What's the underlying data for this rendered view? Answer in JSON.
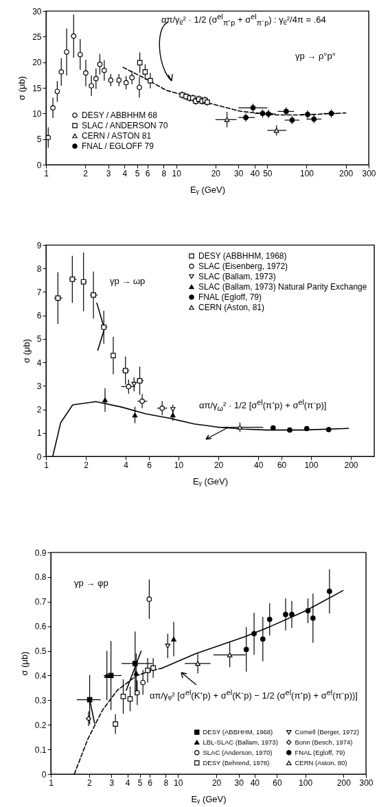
{
  "chart_data": [
    {
      "type": "scatter",
      "xlabel": "Eᵧ (GeV)",
      "ylabel": "σ (μb)",
      "log": "x",
      "legend": "bottom left",
      "xlim": [
        1,
        300
      ],
      "xticks": [
        1,
        2,
        3,
        4,
        5,
        6,
        8,
        10,
        20,
        30,
        40,
        50,
        100,
        200,
        300
      ],
      "ylim": [
        0,
        30
      ],
      "yticks": [
        0,
        5,
        10,
        15,
        20,
        25,
        30
      ],
      "annotations": [
        "απ/γᵨ² · 1/2 (σ$^{el}$$_{π⁺p}$ + σ$^{el}$$_{π⁻p}$) : γᵨ²/4π = .64",
        "γp → ρ°p°"
      ],
      "series": [
        {
          "name": "DESY / ABBHHM 68",
          "marker": "circle",
          "color": "#ffffff",
          "x": [
            1.04,
            1.13,
            1.22,
            1.31,
            1.44,
            1.63,
            1.83,
            2.02,
            2.23,
            2.42,
            2.59,
            2.8,
            3.14,
            3.63,
            4.12,
            4.57,
            5.21
          ],
          "values": [
            5.3,
            11.1,
            14.3,
            18.1,
            22.0,
            25.1,
            21.5,
            17.9,
            15.4,
            16.8,
            19.6,
            18.4,
            16.5,
            16.5,
            16.0,
            17.0,
            15.1
          ],
          "errors": [
            2,
            2,
            2,
            2.7,
            4.6,
            4.2,
            3,
            2.6,
            2,
            2,
            2,
            2,
            1.2,
            1.2,
            1.3,
            1.3,
            2
          ]
        },
        {
          "name": "SLAC / ANDERSON 70",
          "marker": "square",
          "color": "#ffffff",
          "x": [
            5.25,
            5.77,
            6.32,
            11.1,
            11.9,
            12.7,
            13.4,
            14.1,
            14.9,
            15.8,
            16.6,
            17.3
          ],
          "values": [
            19.9,
            18.1,
            16.4,
            13.6,
            13.3,
            13.0,
            13.0,
            12.4,
            12.8,
            12.4,
            12.6,
            12.2
          ],
          "errors": [
            2,
            1.5,
            1.5,
            0.7,
            0.7,
            0.7,
            0.7,
            0.7,
            0.7,
            0.7,
            0.7,
            0.7
          ]
        },
        {
          "name": "CERN / ASTON 81",
          "marker": "triangle",
          "color": "#ffffff",
          "x": [
            24.5,
            58.8
          ],
          "values": [
            8.8,
            6.7
          ],
          "errors": [
            1.5,
            1
          ],
          "xerrors": [
            [
              20,
              29
            ],
            [
              50,
              70
            ]
          ]
        },
        {
          "name": "FNAL / EGLOFF 79",
          "marker": "circle",
          "color": "#000000",
          "x": [
            34.2,
            38.8,
            46,
            51,
            69.8,
            77.5,
            102,
            114,
            155
          ],
          "values": [
            9.2,
            11.1,
            10.0,
            9.9,
            10.4,
            8.7,
            9.8,
            8.9,
            10.0
          ],
          "errors": [
            0.8,
            0.8,
            0.8,
            0.8,
            0.8,
            0.8,
            0.8,
            0.8,
            0.8
          ],
          "xerrors": [
            [
              30,
              40
            ],
            [
              30,
              50
            ],
            [
              40,
              55
            ],
            [
              45,
              58
            ],
            [
              60,
              80
            ],
            [
              68,
              88
            ],
            [
              90,
              115
            ],
            [
              100,
              130
            ],
            [
              135,
              175
            ]
          ]
        },
        {
          "type": "line",
          "line_style": "dashed",
          "color": "#000000",
          "x": [
            3.9,
            5.7,
            8.4,
            11.8,
            17.3,
            31.4,
            59,
            91,
            200
          ],
          "values": [
            19.0,
            16.9,
            14.5,
            13.5,
            12.1,
            10.4,
            9.7,
            9.7,
            10.1
          ]
        }
      ]
    },
    {
      "type": "scatter",
      "xlabel": "Eᵧ (GeV)",
      "ylabel": "σ (μb)",
      "log": "x",
      "legend": "top right",
      "xlim": [
        1,
        300
      ],
      "xticks": [
        1,
        2,
        4,
        6,
        10,
        20,
        40,
        60,
        100,
        200
      ],
      "ylim": [
        0,
        9
      ],
      "yticks": [
        0,
        1,
        2,
        3,
        4,
        5,
        6,
        7,
        8,
        9
      ],
      "annotations": [
        "γp → ωp",
        "απ/γ$_{ω}$² · 1/2 [σ$^{el}$(π⁺p) + σ$^{el}$(π⁻p)]"
      ],
      "series": [
        {
          "name": "DESY (ABBHHM, 1968)",
          "marker": "square",
          "color": "#ffffff",
          "x": [
            1.23,
            1.58,
            1.92,
            2.28,
            2.73,
            3.22,
            3.98,
            5.1
          ],
          "values": [
            6.74,
            7.54,
            7.43,
            6.87,
            5.5,
            4.29,
            3.65,
            3.22
          ],
          "errors": [
            1.1,
            1.0,
            1.25,
            1.0,
            0.7,
            0.8,
            0.6,
            0.6
          ],
          "xerrors": [
            [
              1.15,
              1.33
            ],
            [
              1.5,
              1.7
            ],
            [
              1.83,
              2.03
            ],
            [
              2.15,
              2.45
            ],
            [
              2.6,
              2.9
            ],
            [
              3.1,
              3.35
            ],
            [
              3.75,
              4.25
            ],
            [
              4.85,
              5.45
            ]
          ]
        },
        {
          "name": "SLAC (Eisenberg, 1972)",
          "marker": "circle",
          "color": "#ffffff",
          "x": [
            4.2,
            5.32,
            7.53
          ],
          "values": [
            2.97,
            2.35,
            2.05
          ],
          "errors": [
            0.3,
            0.3,
            0.3
          ],
          "xerrors": [
            [
              3.7,
              4.7
            ],
            [
              4.9,
              5.8
            ],
            [
              6.9,
              8.2
            ]
          ]
        },
        {
          "name": "SLAC (Ballam, 1973)",
          "marker": "triangle-down",
          "color": "#ffffff",
          "x": [
            4.62,
            9.07
          ],
          "values": [
            3.07,
            2.0
          ],
          "errors": [
            0.3,
            0.2
          ]
        },
        {
          "name": "SLAC (Ballam, 1973) Natural Parity Exchange",
          "marker": "triangle",
          "color": "#000000",
          "x": [
            2.79,
            4.69,
            9.07
          ],
          "values": [
            2.4,
            1.76,
            1.76
          ],
          "errors": [
            0.5,
            0.35,
            0.25
          ]
        },
        {
          "name": "FNAL (Egloff, 79)",
          "marker": "circle",
          "color": "#000000",
          "x": [
            51.8,
            69.1,
            92.9,
            136
          ],
          "values": [
            1.21,
            1.12,
            1.18,
            1.14
          ],
          "errors": [
            0.1,
            0.1,
            0.1,
            0.1
          ]
        },
        {
          "name": "CERN (Aston, 81)",
          "marker": "triangle",
          "color": "#ffffff",
          "x": [
            29.1
          ],
          "values": [
            1.24
          ],
          "errors": [
            0.2
          ],
          "xerrors": [
            [
              19.5,
              43.6
            ]
          ]
        },
        {
          "type": "line",
          "line_style": "solid",
          "color": "#000000",
          "x": [
            1.125,
            1.29,
            1.59,
            2.38,
            3.7,
            5.65,
            8.6,
            13.1,
            20.1,
            30.6,
            46.8,
            88.1,
            192
          ],
          "values": [
            0,
            1.43,
            2.19,
            2.33,
            2.1,
            1.81,
            1.62,
            1.38,
            1.24,
            1.16,
            1.12,
            1.12,
            1.19
          ]
        },
        {
          "type": "line",
          "line_style": "solid",
          "color": "#000000",
          "x": [
            2.42,
            2.76,
            2.46
          ],
          "values": [
            6.52,
            5.43,
            4.52
          ]
        }
      ]
    },
    {
      "type": "scatter",
      "xlabel": "Eᵧ (GeV)",
      "ylabel": "σ (μb)",
      "log": "x",
      "legend": "bottom right",
      "xlim": [
        1,
        300
      ],
      "xticks": [
        1,
        2,
        3,
        4,
        5,
        6,
        8,
        10,
        20,
        30,
        40,
        60,
        100,
        200,
        300
      ],
      "ylim": [
        0,
        0.9
      ],
      "yticks": [
        0,
        0.1,
        0.2,
        0.3,
        0.4,
        0.5,
        0.6,
        0.7,
        0.8,
        0.9
      ],
      "annotations": [
        "γp → φp",
        "απ/γᵩ² [σ$^{el}$(K⁺p) + σ$^{el}$(K⁻p) − 1/2 (σ$^{el}$(π⁺p) + σ$^{el}$(π⁻p))]"
      ],
      "series": [
        {
          "name": "DESY (ABBHHM, 1968)",
          "marker": "square",
          "color": "#000000",
          "x": [
            2.02,
            2.97,
            4.6
          ],
          "values": [
            0.302,
            0.4,
            0.449
          ],
          "errors": [
            0.1,
            0.14,
            0.13
          ],
          "xerrors": [
            [
              1.6,
              2.46
            ],
            [
              2.6,
              3.6
            ],
            [
              3.6,
              6.3
            ]
          ]
        },
        {
          "name": "LBL-SLAC (Ballam, 1973)",
          "marker": "triangle",
          "color": "#000000",
          "x": [
            2.76,
            4.69,
            9.25
          ],
          "values": [
            0.4,
            0.41,
            0.548
          ],
          "errors": [
            0.1,
            0.08,
            0.07
          ]
        },
        {
          "name": "SLAC (Anderson, 1970)",
          "marker": "circle",
          "color": "#ffffff",
          "x": [
            4.78,
            5.3,
            5.94
          ],
          "values": [
            0.33,
            0.372,
            0.71
          ],
          "errors": [
            0.05,
            0.05,
            0.08
          ]
        },
        {
          "name": "DESY (Behrend, 1978)",
          "marker": "square",
          "color": "#ffffff",
          "x": [
            3.22,
            3.71,
            4.2,
            5.77,
            6.38
          ],
          "values": [
            0.203,
            0.315,
            0.305,
            0.421,
            0.431
          ],
          "errors": [
            0.04,
            0.07,
            0.05,
            0.05,
            0.04
          ]
        },
        {
          "name": "Cornell (Berger, 1972)",
          "marker": "triangle-down",
          "color": "#ffffff",
          "x": [
            8.3
          ],
          "values": [
            0.52
          ],
          "errors": [
            0.05
          ]
        },
        {
          "name": "Bonn (Besch, 1974)",
          "marker": "diamond",
          "color": "#ffffff",
          "x": [
            1.98
          ],
          "values": [
            0.225
          ],
          "errors": [
            0.03
          ]
        },
        {
          "name": "FNAL (Egloff, 79)",
          "marker": "circle",
          "color": "#000000",
          "x": [
            34.4,
            39.6,
            46.4,
            52.5,
            70.1,
            78.4,
            105,
            115,
            155
          ],
          "values": [
            0.506,
            0.57,
            0.548,
            0.628,
            0.648,
            0.648,
            0.663,
            0.633,
            0.742
          ],
          "errors": [
            0.09,
            0.085,
            0.09,
            0.065,
            0.065,
            0.055,
            0.05,
            0.1,
            0.09
          ]
        },
        {
          "name": "CERN (Aston, 80)",
          "marker": "triangle",
          "color": "#ffffff",
          "x": [
            14.3,
            25.5
          ],
          "values": [
            0.449,
            0.484
          ],
          "errors": [
            0.04,
            0.05
          ],
          "xerrors": [
            [
              11.3,
              18
            ],
            [
              19,
              34
            ]
          ]
        },
        {
          "type": "line",
          "line_style": "solid",
          "color": "#000000",
          "x": [
            7.4,
            13.8,
            33.6,
            52.5,
            101,
            198
          ],
          "values": [
            0.429,
            0.489,
            0.558,
            0.598,
            0.663,
            0.745
          ]
        },
        {
          "type": "line",
          "line_style": "dashed",
          "color": "#000000",
          "x": [
            1.53,
            1.95,
            2.55,
            3.33,
            4.74,
            6.48,
            7.4
          ],
          "values": [
            0,
            0.141,
            0.26,
            0.34,
            0.4,
            0.423,
            0.429
          ]
        },
        {
          "type": "line",
          "line_style": "solid",
          "color": "#000000",
          "x": [
            2.02,
            2.21
          ],
          "values": [
            0.302,
            0.206
          ]
        },
        {
          "type": "line",
          "line_style": "solid",
          "color": "#000000",
          "x": [
            3.92,
            5.12
          ],
          "values": [
            0.34,
            0.499
          ]
        }
      ]
    }
  ]
}
